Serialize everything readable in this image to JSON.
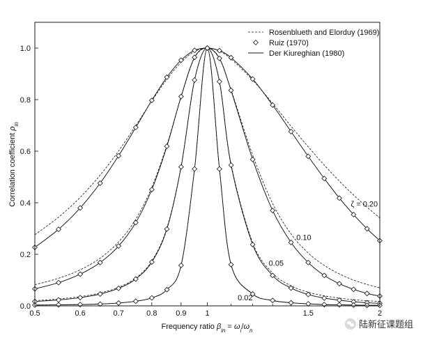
{
  "chart_data": {
    "type": "line",
    "xlabel": "Frequency ratio β_in = ω_i/ω_n",
    "ylabel": "Correlation coefficient ρ_in",
    "xscale": "log",
    "xlim": [
      0.5,
      2
    ],
    "ylim": [
      0,
      1.1
    ],
    "x_ticks": [
      {
        "value": 0.5,
        "label": "0.5"
      },
      {
        "value": 0.6,
        "label": "0.6"
      },
      {
        "value": 0.7,
        "label": "0.7"
      },
      {
        "value": 0.8,
        "label": "0.8"
      },
      {
        "value": 0.9,
        "label": "0.9"
      },
      {
        "value": 1.0,
        "label": "1"
      },
      {
        "value": 1.5,
        "label": "1.5"
      },
      {
        "value": 2.0,
        "label": "2"
      }
    ],
    "x_minor_ticks": [
      1.1,
      1.2,
      1.3,
      1.4,
      1.6,
      1.7,
      1.8,
      1.9
    ],
    "y_ticks": [
      {
        "value": 0.0,
        "label": "0.0"
      },
      {
        "value": 0.2,
        "label": "0.2"
      },
      {
        "value": 0.4,
        "label": "0.4"
      },
      {
        "value": 0.6,
        "label": "0.6"
      },
      {
        "value": 0.8,
        "label": "0.8"
      },
      {
        "value": 1.0,
        "label": "1.0"
      }
    ],
    "legend": {
      "position": "top-right",
      "entries": [
        {
          "label": "Rosenblueth and Elorduy (1969)",
          "style": "dashed"
        },
        {
          "label": "Ruiz (1970)",
          "style": "diamond"
        },
        {
          "label": "Der Kiureghian (1980)",
          "style": "solid"
        }
      ]
    },
    "series": [
      {
        "zeta": 0.2,
        "label": "ζ = 0.20",
        "x": [
          0.5,
          0.55,
          0.6,
          0.65,
          0.7,
          0.75,
          0.8,
          0.85,
          0.9,
          0.95,
          1.0,
          1.05,
          1.1,
          1.2,
          1.3,
          1.4,
          1.5,
          1.6,
          1.7,
          1.8,
          1.9,
          2.0
        ],
        "der_kiureghian": [
          0.227,
          0.297,
          0.38,
          0.476,
          0.582,
          0.692,
          0.797,
          0.887,
          0.953,
          0.991,
          1.0,
          0.99,
          0.963,
          0.88,
          0.779,
          0.676,
          0.58,
          0.494,
          0.418,
          0.354,
          0.299,
          0.253
        ],
        "rosenblueth_elorduy": [
          0.276,
          0.344,
          0.421,
          0.507,
          0.601,
          0.699,
          0.795,
          0.879,
          0.945,
          0.987,
          1.0,
          0.988,
          0.958,
          0.876,
          0.785,
          0.697,
          0.617,
          0.546,
          0.484,
          0.43,
          0.383,
          0.341
        ],
        "ruiz": [
          0.227,
          0.297,
          0.38,
          0.476,
          0.582,
          0.692,
          0.797,
          0.887,
          0.953,
          0.991,
          1.0,
          0.99,
          0.963,
          0.88,
          0.779,
          0.676,
          0.58,
          0.494,
          0.418,
          0.354,
          0.299,
          0.253
        ]
      },
      {
        "zeta": 0.1,
        "label": "0.10",
        "x": [
          0.5,
          0.55,
          0.6,
          0.65,
          0.7,
          0.75,
          0.8,
          0.85,
          0.9,
          0.95,
          1.0,
          1.05,
          1.1,
          1.2,
          1.3,
          1.4,
          1.5,
          1.6,
          1.7,
          1.8,
          1.9,
          2.0
        ],
        "der_kiureghian": [
          0.066,
          0.09,
          0.123,
          0.168,
          0.232,
          0.323,
          0.451,
          0.619,
          0.812,
          0.964,
          1.0,
          0.96,
          0.836,
          0.568,
          0.37,
          0.246,
          0.168,
          0.118,
          0.086,
          0.064,
          0.048,
          0.038
        ],
        "rosenblueth_elorduy": [
          0.082,
          0.107,
          0.14,
          0.185,
          0.248,
          0.336,
          0.46,
          0.624,
          0.811,
          0.962,
          1.0,
          0.958,
          0.838,
          0.585,
          0.397,
          0.279,
          0.205,
          0.157,
          0.124,
          0.1,
          0.083,
          0.07
        ],
        "ruiz": [
          0.066,
          0.09,
          0.123,
          0.168,
          0.232,
          0.323,
          0.451,
          0.619,
          0.812,
          0.964,
          1.0,
          0.96,
          0.836,
          0.568,
          0.37,
          0.246,
          0.168,
          0.118,
          0.086,
          0.064,
          0.048,
          0.038
        ]
      },
      {
        "zeta": 0.05,
        "label": "0.05",
        "x": [
          0.5,
          0.55,
          0.6,
          0.65,
          0.7,
          0.75,
          0.8,
          0.85,
          0.9,
          0.95,
          1.0,
          1.05,
          1.1,
          1.2,
          1.3,
          1.4,
          1.5,
          1.6,
          1.7,
          1.8,
          1.9,
          2.0
        ],
        "der_kiureghian": [
          0.017,
          0.023,
          0.032,
          0.046,
          0.068,
          0.104,
          0.17,
          0.298,
          0.539,
          0.876,
          1.0,
          0.87,
          0.546,
          0.238,
          0.118,
          0.069,
          0.044,
          0.03,
          0.022,
          0.016,
          0.012,
          0.01
        ],
        "rosenblueth_elorduy": [
          0.02,
          0.027,
          0.036,
          0.05,
          0.072,
          0.108,
          0.174,
          0.302,
          0.541,
          0.876,
          1.0,
          0.871,
          0.55,
          0.245,
          0.127,
          0.078,
          0.053,
          0.039,
          0.03,
          0.024,
          0.02,
          0.017
        ],
        "ruiz": [
          0.017,
          0.023,
          0.032,
          0.046,
          0.068,
          0.104,
          0.17,
          0.298,
          0.539,
          0.876,
          1.0,
          0.87,
          0.546,
          0.238,
          0.118,
          0.069,
          0.044,
          0.03,
          0.022,
          0.016,
          0.012,
          0.01
        ]
      },
      {
        "zeta": 0.02,
        "label": "0.02",
        "x": [
          0.5,
          0.55,
          0.6,
          0.65,
          0.7,
          0.75,
          0.8,
          0.85,
          0.9,
          0.95,
          1.0,
          1.05,
          1.1,
          1.2,
          1.3,
          1.4,
          1.5,
          1.6,
          1.7,
          1.8,
          1.9,
          2.0
        ],
        "der_kiureghian": [
          0.003,
          0.004,
          0.005,
          0.007,
          0.011,
          0.018,
          0.031,
          0.063,
          0.157,
          0.531,
          1.0,
          0.531,
          0.16,
          0.046,
          0.021,
          0.012,
          0.008,
          0.005,
          0.004,
          0.003,
          0.002,
          0.002
        ],
        "rosenblueth_elorduy": [
          0.003,
          0.004,
          0.005,
          0.007,
          0.011,
          0.018,
          0.031,
          0.063,
          0.157,
          0.531,
          1.0,
          0.531,
          0.16,
          0.046,
          0.021,
          0.012,
          0.008,
          0.005,
          0.004,
          0.003,
          0.002,
          0.002
        ],
        "ruiz": [
          0.003,
          0.004,
          0.005,
          0.007,
          0.011,
          0.018,
          0.031,
          0.063,
          0.157,
          0.531,
          1.0,
          0.531,
          0.16,
          0.046,
          0.021,
          0.012,
          0.008,
          0.005,
          0.004,
          0.003,
          0.002,
          0.002
        ]
      }
    ]
  },
  "watermark": {
    "icon": "wechat-icon",
    "text": "陆新征课题组"
  }
}
